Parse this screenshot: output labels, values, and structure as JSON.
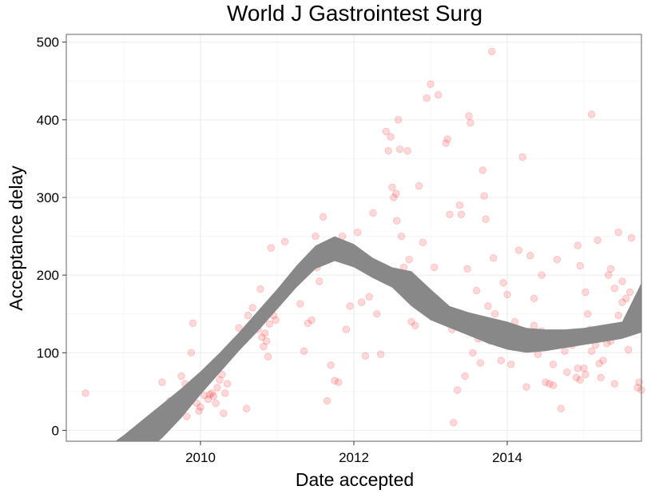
{
  "chart_data": {
    "type": "scatter",
    "title": "World J Gastrointest Surg",
    "xlabel": "Date accepted",
    "ylabel": "Acceptance delay",
    "xlim": [
      2008.25,
      2015.75
    ],
    "ylim": [
      -14,
      510
    ],
    "x_ticks": [
      2010,
      2012,
      2014
    ],
    "x_tick_labels": [
      "2010",
      "2012",
      "2014"
    ],
    "y_ticks": [
      0,
      100,
      200,
      300,
      400,
      500
    ],
    "y_tick_labels": [
      "0",
      "100",
      "200",
      "300",
      "400",
      "500"
    ],
    "grid": true,
    "point_color": "#ff0000",
    "point_alpha": 0.15,
    "smooth_band_color": "#888888",
    "points": [
      [
        2008.5,
        48
      ],
      [
        2009.5,
        62
      ],
      [
        2009.6,
        38
      ],
      [
        2009.55,
        22
      ],
      [
        2009.65,
        32
      ],
      [
        2009.7,
        28
      ],
      [
        2009.75,
        70
      ],
      [
        2009.78,
        42
      ],
      [
        2009.8,
        60
      ],
      [
        2009.82,
        18
      ],
      [
        2009.88,
        100
      ],
      [
        2009.9,
        138
      ],
      [
        2009.92,
        52
      ],
      [
        2009.95,
        35
      ],
      [
        2009.98,
        25
      ],
      [
        2010.0,
        30
      ],
      [
        2010.02,
        55
      ],
      [
        2010.05,
        45
      ],
      [
        2010.07,
        68
      ],
      [
        2010.1,
        40
      ],
      [
        2010.12,
        46
      ],
      [
        2010.15,
        48
      ],
      [
        2010.17,
        44
      ],
      [
        2010.18,
        78
      ],
      [
        2010.2,
        35
      ],
      [
        2010.22,
        55
      ],
      [
        2010.25,
        65
      ],
      [
        2010.28,
        72
      ],
      [
        2010.3,
        22
      ],
      [
        2010.32,
        48
      ],
      [
        2010.35,
        60
      ],
      [
        2010.4,
        102
      ],
      [
        2010.5,
        132
      ],
      [
        2010.6,
        28
      ],
      [
        2010.62,
        148
      ],
      [
        2010.68,
        158
      ],
      [
        2010.7,
        140
      ],
      [
        2010.72,
        132
      ],
      [
        2010.75,
        130
      ],
      [
        2010.78,
        182
      ],
      [
        2010.8,
        120
      ],
      [
        2010.82,
        108
      ],
      [
        2010.84,
        125
      ],
      [
        2010.86,
        115
      ],
      [
        2010.88,
        95
      ],
      [
        2010.9,
        137
      ],
      [
        2010.92,
        235
      ],
      [
        2010.95,
        148
      ],
      [
        2010.98,
        142
      ],
      [
        2011.1,
        243
      ],
      [
        2011.2,
        190
      ],
      [
        2011.25,
        200
      ],
      [
        2011.3,
        163
      ],
      [
        2011.35,
        102
      ],
      [
        2011.4,
        138
      ],
      [
        2011.45,
        142
      ],
      [
        2011.5,
        250
      ],
      [
        2011.52,
        210
      ],
      [
        2011.55,
        192
      ],
      [
        2011.6,
        275
      ],
      [
        2011.62,
        228
      ],
      [
        2011.65,
        38
      ],
      [
        2011.7,
        84
      ],
      [
        2011.75,
        64
      ],
      [
        2011.8,
        62
      ],
      [
        2011.85,
        250
      ],
      [
        2011.9,
        130
      ],
      [
        2011.95,
        160
      ],
      [
        2012.0,
        222
      ],
      [
        2012.05,
        255
      ],
      [
        2012.1,
        165
      ],
      [
        2012.15,
        96
      ],
      [
        2012.2,
        172
      ],
      [
        2012.25,
        280
      ],
      [
        2012.3,
        150
      ],
      [
        2012.35,
        98
      ],
      [
        2012.42,
        385
      ],
      [
        2012.45,
        360
      ],
      [
        2012.48,
        378
      ],
      [
        2012.5,
        313
      ],
      [
        2012.52,
        300
      ],
      [
        2012.55,
        305
      ],
      [
        2012.56,
        270
      ],
      [
        2012.58,
        400
      ],
      [
        2012.6,
        362
      ],
      [
        2012.62,
        250
      ],
      [
        2012.65,
        210
      ],
      [
        2012.68,
        188
      ],
      [
        2012.7,
        360
      ],
      [
        2012.72,
        220
      ],
      [
        2012.75,
        140
      ],
      [
        2012.8,
        135
      ],
      [
        2012.85,
        315
      ],
      [
        2012.9,
        242
      ],
      [
        2012.95,
        428
      ],
      [
        2013.0,
        446
      ],
      [
        2013.05,
        210
      ],
      [
        2013.1,
        432
      ],
      [
        2013.15,
        150
      ],
      [
        2013.2,
        370
      ],
      [
        2013.22,
        375
      ],
      [
        2013.25,
        278
      ],
      [
        2013.28,
        130
      ],
      [
        2013.3,
        10
      ],
      [
        2013.35,
        52
      ],
      [
        2013.38,
        290
      ],
      [
        2013.4,
        278
      ],
      [
        2013.45,
        70
      ],
      [
        2013.48,
        208
      ],
      [
        2013.5,
        405
      ],
      [
        2013.52,
        396
      ],
      [
        2013.55,
        100
      ],
      [
        2013.6,
        180
      ],
      [
        2013.62,
        118
      ],
      [
        2013.65,
        87
      ],
      [
        2013.68,
        335
      ],
      [
        2013.7,
        302
      ],
      [
        2013.72,
        272
      ],
      [
        2013.75,
        160
      ],
      [
        2013.78,
        115
      ],
      [
        2013.8,
        488
      ],
      [
        2013.82,
        222
      ],
      [
        2013.84,
        150
      ],
      [
        2013.86,
        135
      ],
      [
        2013.88,
        128
      ],
      [
        2013.9,
        125
      ],
      [
        2013.92,
        90
      ],
      [
        2013.95,
        190
      ],
      [
        2013.98,
        110
      ],
      [
        2014.0,
        175
      ],
      [
        2014.05,
        85
      ],
      [
        2014.1,
        140
      ],
      [
        2014.15,
        232
      ],
      [
        2014.2,
        352
      ],
      [
        2014.25,
        56
      ],
      [
        2014.3,
        120
      ],
      [
        2014.35,
        135
      ],
      [
        2014.4,
        98
      ],
      [
        2014.45,
        200
      ],
      [
        2014.5,
        62
      ],
      [
        2014.55,
        60
      ],
      [
        2014.6,
        58
      ],
      [
        2014.65,
        220
      ],
      [
        2014.7,
        28
      ],
      [
        2014.75,
        102
      ],
      [
        2014.8,
        120
      ],
      [
        2014.85,
        110
      ],
      [
        2014.9,
        68
      ],
      [
        2014.92,
        80
      ],
      [
        2014.95,
        65
      ],
      [
        2015.0,
        80
      ],
      [
        2015.02,
        72
      ],
      [
        2015.05,
        150
      ],
      [
        2015.08,
        130
      ],
      [
        2015.1,
        407
      ],
      [
        2015.12,
        120
      ],
      [
        2015.15,
        110
      ],
      [
        2015.18,
        245
      ],
      [
        2015.2,
        86
      ],
      [
        2015.25,
        90
      ],
      [
        2015.3,
        112
      ],
      [
        2015.35,
        115
      ],
      [
        2015.4,
        183
      ],
      [
        2015.45,
        148
      ],
      [
        2015.5,
        165
      ],
      [
        2015.55,
        170
      ],
      [
        2015.6,
        178
      ],
      [
        2015.62,
        145
      ],
      [
        2015.65,
        140
      ],
      [
        2015.68,
        130
      ],
      [
        2015.7,
        55
      ],
      [
        2015.72,
        62
      ],
      [
        2015.75,
        52
      ],
      [
        2014.3,
        225
      ],
      [
        2014.35,
        170
      ],
      [
        2014.45,
        128
      ],
      [
        2014.6,
        85
      ],
      [
        2014.78,
        75
      ],
      [
        2014.92,
        238
      ],
      [
        2014.95,
        212
      ],
      [
        2015.02,
        178
      ],
      [
        2015.1,
        102
      ],
      [
        2015.22,
        68
      ],
      [
        2015.28,
        130
      ],
      [
        2015.32,
        200
      ],
      [
        2015.35,
        208
      ],
      [
        2015.4,
        60
      ],
      [
        2015.45,
        255
      ],
      [
        2015.5,
        192
      ],
      [
        2015.58,
        104
      ],
      [
        2015.62,
        248
      ],
      [
        2015.65,
        155
      ]
    ],
    "smooth_band": {
      "x": [
        2008.25,
        2008.5,
        2008.75,
        2009.0,
        2009.25,
        2009.5,
        2009.75,
        2010.0,
        2010.25,
        2010.5,
        2010.75,
        2011.0,
        2011.25,
        2011.5,
        2011.75,
        2012.0,
        2012.25,
        2012.5,
        2012.75,
        2013.0,
        2013.25,
        2013.5,
        2013.75,
        2014.0,
        2014.25,
        2014.5,
        2014.75,
        2015.0,
        2015.25,
        2015.5,
        2015.75
      ],
      "upper": [
        -60,
        -42,
        -24,
        -6,
        14,
        34,
        54,
        76,
        100,
        126,
        154,
        182,
        212,
        238,
        250,
        240,
        222,
        210,
        205,
        182,
        160,
        152,
        146,
        140,
        132,
        130,
        130,
        132,
        136,
        140,
        190
      ],
      "lower": [
        -95,
        -80,
        -65,
        -50,
        -30,
        -10,
        16,
        46,
        74,
        102,
        128,
        156,
        184,
        208,
        218,
        210,
        196,
        184,
        160,
        142,
        132,
        122,
        112,
        104,
        100,
        102,
        106,
        110,
        114,
        118,
        126
      ]
    }
  }
}
